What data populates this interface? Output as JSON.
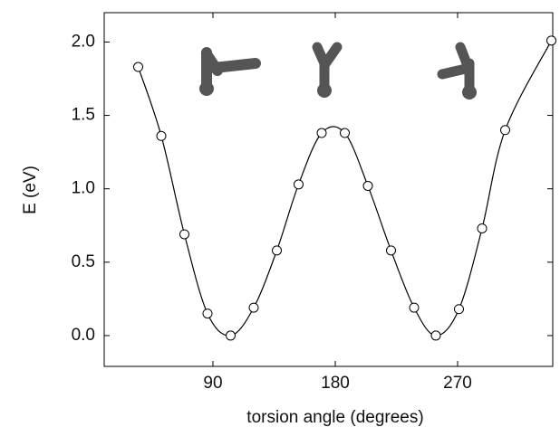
{
  "chart_data": {
    "type": "line",
    "x_label": "torsion angle (degrees)",
    "y_label": "E (eV)",
    "x": [
      35,
      52,
      69,
      86,
      103,
      120,
      137,
      153,
      170,
      187,
      204,
      221,
      238,
      254,
      271,
      288,
      305,
      339
    ],
    "series": [
      {
        "color": "#000000",
        "values": [
          1.83,
          1.36,
          0.69,
          0.15,
          0.0,
          0.19,
          0.58,
          1.03,
          1.38,
          1.38,
          1.02,
          0.58,
          0.19,
          0.0,
          0.18,
          0.73,
          1.4,
          2.01
        ]
      }
    ],
    "xlim": [
      10,
      340
    ],
    "ylim": [
      -0.21,
      2.2
    ],
    "xticks": [
      90,
      180,
      270
    ],
    "yticks": [
      {
        "value": 0,
        "label": "0.0"
      },
      {
        "value": 0.5,
        "label": "0.5"
      },
      {
        "value": 1,
        "label": "1.0"
      },
      {
        "value": 1.5,
        "label": "1.5"
      },
      {
        "value": 2,
        "label": "2.0"
      }
    ],
    "grid": false
  }
}
